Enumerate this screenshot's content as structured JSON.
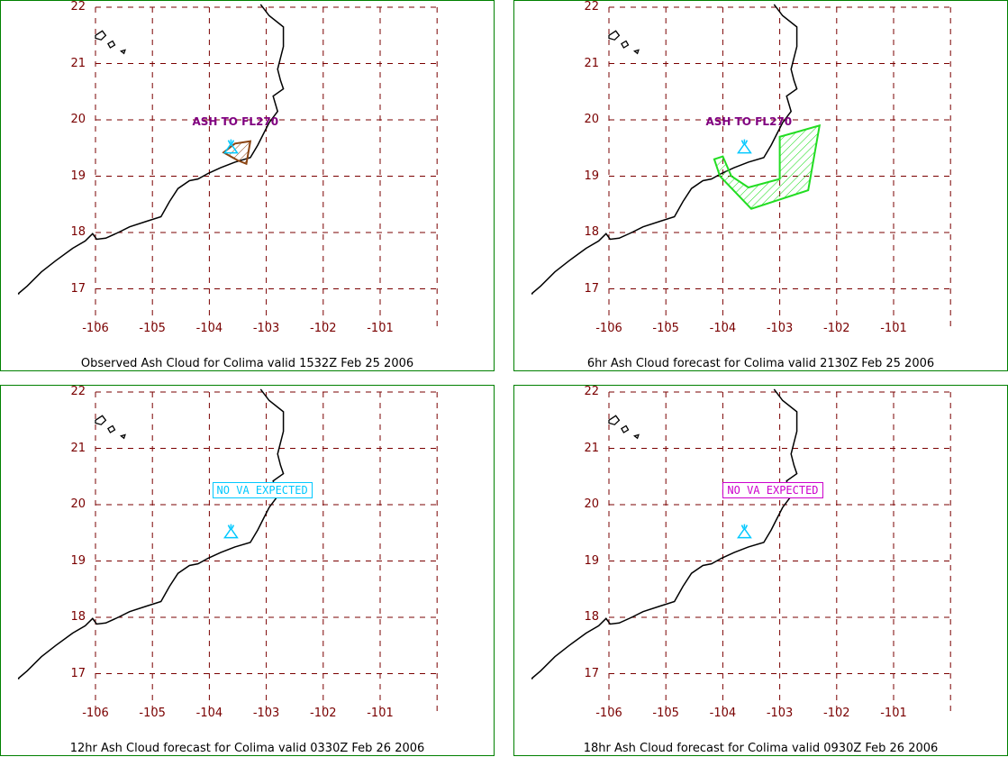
{
  "colors": {
    "border": "#008000",
    "grid": "#7a0000",
    "tick_label": "#7a0000",
    "coastline": "#000000",
    "volcano": "#00c8ff",
    "observed_ash": "#8b4513",
    "forecast_ash": "#22dd22",
    "ash_label": "#800080"
  },
  "axes": {
    "lon_range": [
      -106.3,
      -100.05
    ],
    "lat_range": [
      16.45,
      22.05
    ]
  },
  "volcano": {
    "name": "Colima",
    "lon": -103.62,
    "lat": 19.51,
    "icon": "volcano-icon"
  },
  "panels": [
    {
      "id": "observed",
      "caption": "Observed Ash Cloud for Colima valid 1532Z Feb 25 2006",
      "xticks": [
        "-106",
        "-105",
        "-104",
        "-103",
        "-102",
        "-101"
      ],
      "yticks": [
        "22",
        "21",
        "20",
        "19",
        "18",
        "17"
      ],
      "annotation": {
        "text": "ASH TO FL270",
        "type": "ash",
        "lon": -104.3,
        "lat": 19.95
      },
      "ash_polygon": {
        "color": "#8b4513",
        "points": [
          [
            -103.75,
            19.42
          ],
          [
            -103.55,
            19.58
          ],
          [
            -103.28,
            19.62
          ],
          [
            -103.35,
            19.22
          ],
          [
            -103.5,
            19.28
          ]
        ]
      }
    },
    {
      "id": "fc6",
      "caption": "6hr Ash Cloud forecast for Colima valid 2130Z Feb 25 2006",
      "xticks": [
        "-106",
        "-105",
        "-104",
        "-103",
        "-102",
        "-101"
      ],
      "yticks": [
        "22",
        "21",
        "20",
        "19",
        "18",
        "17"
      ],
      "annotation": {
        "text": "ASH TO FL270",
        "type": "ash",
        "lon": -104.3,
        "lat": 19.95
      },
      "ash_polygon": {
        "color": "#22dd22",
        "points": [
          [
            -104.15,
            19.3
          ],
          [
            -104.0,
            19.35
          ],
          [
            -103.85,
            19.0
          ],
          [
            -103.55,
            18.8
          ],
          [
            -103.0,
            18.95
          ],
          [
            -103.0,
            19.7
          ],
          [
            -102.3,
            19.9
          ],
          [
            -102.5,
            18.75
          ],
          [
            -103.5,
            18.42
          ],
          [
            -104.05,
            19.0
          ]
        ]
      }
    },
    {
      "id": "fc12",
      "caption": "12hr Ash Cloud forecast for Colima valid 0330Z Feb 26 2006",
      "xticks": [
        "-106",
        "-105",
        "-104",
        "-103",
        "-102",
        "-101"
      ],
      "yticks": [
        "22",
        "21",
        "20",
        "19",
        "18",
        "17"
      ],
      "annotation": {
        "text": "NO VA EXPECTED",
        "type": "box",
        "color": "#00c8ff",
        "lon": -103.95,
        "lat": 20.27
      }
    },
    {
      "id": "fc18",
      "caption": "18hr Ash Cloud forecast for Colima valid 0930Z Feb 26 2006",
      "xticks": [
        "-106",
        "-105",
        "-104",
        "-103",
        "-102",
        "-101"
      ],
      "yticks": [
        "22",
        "21",
        "20",
        "19",
        "18",
        "17"
      ],
      "annotation": {
        "text": "NO VA EXPECTED",
        "type": "box",
        "color": "#cc00cc",
        "lon": -104.0,
        "lat": 20.27
      }
    }
  ],
  "coastline": [
    [
      -103.1,
      22.05
    ],
    [
      -102.95,
      21.85
    ],
    [
      -102.7,
      21.65
    ],
    [
      -102.7,
      21.3
    ],
    [
      -102.75,
      21.1
    ],
    [
      -102.8,
      20.9
    ],
    [
      -102.75,
      20.7
    ],
    [
      -102.7,
      20.55
    ],
    [
      -102.88,
      20.42
    ],
    [
      -102.8,
      20.15
    ],
    [
      -102.95,
      19.95
    ],
    [
      -103.05,
      19.75
    ],
    [
      -103.15,
      19.55
    ],
    [
      -103.28,
      19.33
    ],
    [
      -103.55,
      19.25
    ],
    [
      -103.8,
      19.15
    ],
    [
      -104.02,
      19.05
    ],
    [
      -104.2,
      18.95
    ],
    [
      -104.35,
      18.92
    ],
    [
      -104.55,
      18.78
    ],
    [
      -104.7,
      18.55
    ],
    [
      -104.85,
      18.28
    ],
    [
      -105.1,
      18.2
    ],
    [
      -105.4,
      18.1
    ],
    [
      -105.6,
      18.0
    ],
    [
      -105.82,
      17.9
    ],
    [
      -105.98,
      17.88
    ],
    [
      -106.05,
      17.98
    ],
    [
      -106.18,
      17.85
    ],
    [
      -106.4,
      17.72
    ],
    [
      -106.7,
      17.5
    ],
    [
      -106.95,
      17.3
    ],
    [
      -107.2,
      17.05
    ],
    [
      -107.35,
      16.92
    ],
    [
      -107.35,
      16.9
    ]
  ],
  "islands": [
    [
      [
        -106.0,
        21.5
      ],
      [
        -105.88,
        21.58
      ],
      [
        -105.82,
        21.5
      ],
      [
        -105.9,
        21.42
      ],
      [
        -106.0,
        21.45
      ]
    ],
    [
      [
        -105.78,
        21.35
      ],
      [
        -105.7,
        21.4
      ],
      [
        -105.66,
        21.33
      ],
      [
        -105.74,
        21.28
      ]
    ],
    [
      [
        -105.55,
        21.22
      ],
      [
        -105.48,
        21.24
      ],
      [
        -105.5,
        21.18
      ]
    ]
  ]
}
